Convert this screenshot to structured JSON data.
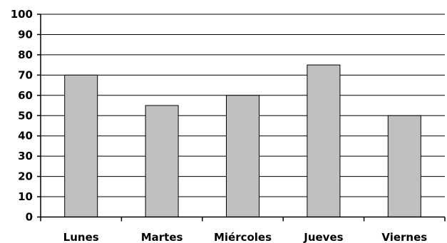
{
  "chart_data": {
    "type": "bar",
    "categories": [
      "Lunes",
      "Martes",
      "Miércoles",
      "Jueves",
      "Viernes"
    ],
    "values": [
      70,
      55,
      60,
      75,
      50
    ],
    "ylim": [
      0,
      100
    ],
    "yticks": [
      "0",
      "10",
      "20",
      "30",
      "40",
      "50",
      "60",
      "70",
      "80",
      "90",
      "100"
    ],
    "grid": true,
    "legend": "none",
    "colors": {
      "bar": "#c0c0c0",
      "bar_edge": "#000000",
      "grid": "#000000",
      "background": "#ffffff"
    }
  }
}
